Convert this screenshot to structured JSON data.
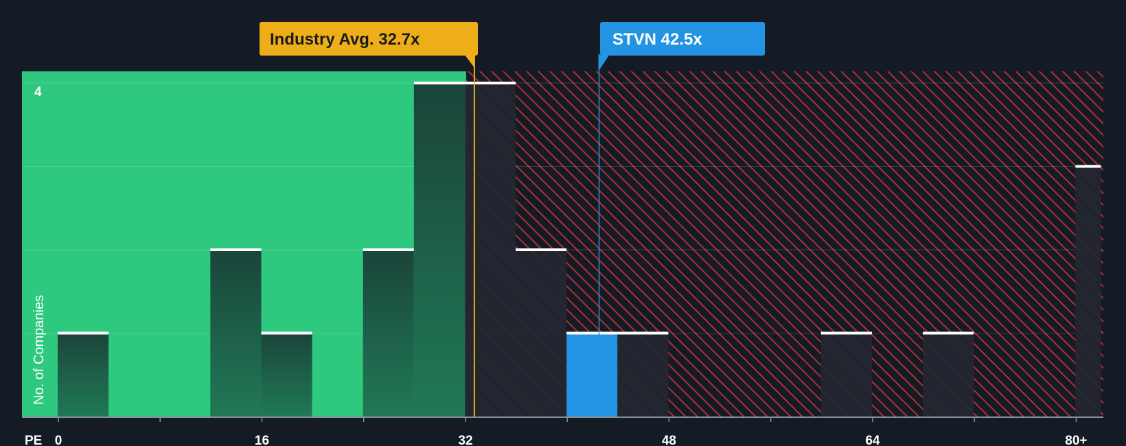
{
  "chart_data": {
    "type": "bar",
    "title": "",
    "xlabel": "PE",
    "ylabel": "No. of Companies",
    "x_ticks": [
      "0",
      "16",
      "32",
      "48",
      "64",
      "80+"
    ],
    "y_ticks": [
      "4"
    ],
    "ylim": [
      0,
      4
    ],
    "bins": [
      {
        "x0": 0,
        "x1": 4,
        "count": 1
      },
      {
        "x0": 12,
        "x1": 16,
        "count": 2
      },
      {
        "x0": 16,
        "x1": 20,
        "count": 1
      },
      {
        "x0": 24,
        "x1": 28,
        "count": 2
      },
      {
        "x0": 28,
        "x1": 32,
        "count": 4
      },
      {
        "x0": 32,
        "x1": 36,
        "count": 4
      },
      {
        "x0": 36,
        "x1": 40,
        "count": 2
      },
      {
        "x0": 40,
        "x1": 44,
        "count": 1,
        "highlight": true
      },
      {
        "x0": 44,
        "x1": 48,
        "count": 1
      },
      {
        "x0": 60,
        "x1": 64,
        "count": 1
      },
      {
        "x0": 68,
        "x1": 72,
        "count": 1
      },
      {
        "x0": 80,
        "x1": 82,
        "count": 3
      }
    ],
    "fair_range_max": 32,
    "industry_avg": {
      "label": "Industry Avg. 32.7x",
      "value": 32.7
    },
    "company": {
      "label": "STVN 42.5x",
      "value": 42.5
    },
    "colors": {
      "background": "#151b24",
      "fair_zone": "#2ec97f",
      "over_zone": "#c73038",
      "bar_dark": "#1c4d3e",
      "bar_over": "#232631",
      "highlight": "#2394e3",
      "industry": "#eeae19"
    }
  }
}
